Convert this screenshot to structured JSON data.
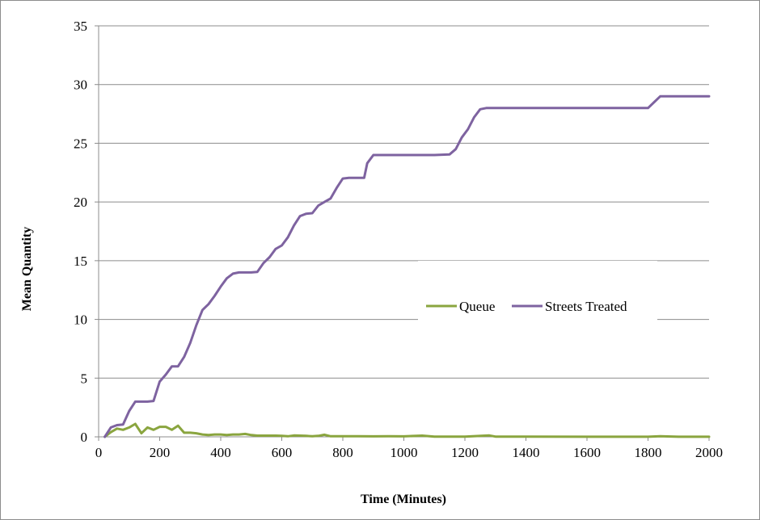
{
  "chart_data": {
    "type": "line",
    "title": "",
    "xlabel": "Time (Minutes)",
    "ylabel": "Mean Quantity",
    "xlim": [
      0,
      2000
    ],
    "ylim": [
      0,
      35
    ],
    "x_ticks": [
      0,
      200,
      400,
      600,
      800,
      1000,
      1200,
      1400,
      1600,
      1800,
      2000
    ],
    "y_ticks": [
      0,
      5,
      10,
      15,
      20,
      25,
      30,
      35
    ],
    "grid": "horizontal",
    "legend_position": "right-middle",
    "series": [
      {
        "name": "Queue",
        "color": "#8aa53f",
        "points": [
          [
            20,
            0
          ],
          [
            40,
            0.4
          ],
          [
            60,
            0.7
          ],
          [
            80,
            0.6
          ],
          [
            100,
            0.8
          ],
          [
            120,
            1.1
          ],
          [
            140,
            0.3
          ],
          [
            160,
            0.8
          ],
          [
            180,
            0.6
          ],
          [
            200,
            0.85
          ],
          [
            220,
            0.85
          ],
          [
            240,
            0.6
          ],
          [
            260,
            0.95
          ],
          [
            280,
            0.35
          ],
          [
            300,
            0.35
          ],
          [
            320,
            0.3
          ],
          [
            340,
            0.2
          ],
          [
            360,
            0.15
          ],
          [
            380,
            0.2
          ],
          [
            400,
            0.2
          ],
          [
            420,
            0.15
          ],
          [
            440,
            0.2
          ],
          [
            460,
            0.2
          ],
          [
            480,
            0.25
          ],
          [
            500,
            0.15
          ],
          [
            520,
            0.1
          ],
          [
            540,
            0.1
          ],
          [
            560,
            0.1
          ],
          [
            580,
            0.1
          ],
          [
            600,
            0.08
          ],
          [
            620,
            0.05
          ],
          [
            640,
            0.12
          ],
          [
            660,
            0.1
          ],
          [
            680,
            0.08
          ],
          [
            700,
            0.05
          ],
          [
            720,
            0.08
          ],
          [
            740,
            0.18
          ],
          [
            760,
            0.05
          ],
          [
            780,
            0.05
          ],
          [
            800,
            0.05
          ],
          [
            850,
            0.05
          ],
          [
            900,
            0.04
          ],
          [
            950,
            0.05
          ],
          [
            1000,
            0.04
          ],
          [
            1060,
            0.1
          ],
          [
            1100,
            0.02
          ],
          [
            1200,
            0.02
          ],
          [
            1280,
            0.12
          ],
          [
            1300,
            0.02
          ],
          [
            1340,
            0.02
          ],
          [
            1400,
            0.02
          ],
          [
            1600,
            0.01
          ],
          [
            1800,
            0.01
          ],
          [
            1840,
            0.05
          ],
          [
            1900,
            0.01
          ],
          [
            2000,
            0.01
          ]
        ]
      },
      {
        "name": "Streets Treated",
        "color": "#7e63a0",
        "points": [
          [
            20,
            0
          ],
          [
            40,
            0.8
          ],
          [
            60,
            1.0
          ],
          [
            80,
            1.05
          ],
          [
            100,
            2.2
          ],
          [
            120,
            3.0
          ],
          [
            140,
            3.0
          ],
          [
            160,
            3.0
          ],
          [
            180,
            3.05
          ],
          [
            200,
            4.7
          ],
          [
            220,
            5.3
          ],
          [
            240,
            6.0
          ],
          [
            260,
            6.0
          ],
          [
            280,
            6.8
          ],
          [
            300,
            8.0
          ],
          [
            320,
            9.5
          ],
          [
            340,
            10.8
          ],
          [
            360,
            11.3
          ],
          [
            380,
            12.0
          ],
          [
            400,
            12.8
          ],
          [
            420,
            13.5
          ],
          [
            440,
            13.9
          ],
          [
            460,
            14.0
          ],
          [
            480,
            14.0
          ],
          [
            500,
            14.0
          ],
          [
            520,
            14.05
          ],
          [
            540,
            14.8
          ],
          [
            560,
            15.3
          ],
          [
            580,
            16.0
          ],
          [
            600,
            16.3
          ],
          [
            620,
            17.0
          ],
          [
            640,
            18.0
          ],
          [
            660,
            18.8
          ],
          [
            680,
            19.0
          ],
          [
            700,
            19.05
          ],
          [
            720,
            19.7
          ],
          [
            740,
            20.0
          ],
          [
            760,
            20.3
          ],
          [
            780,
            21.2
          ],
          [
            800,
            22.0
          ],
          [
            820,
            22.05
          ],
          [
            840,
            22.05
          ],
          [
            870,
            22.05
          ],
          [
            880,
            23.3
          ],
          [
            900,
            24.0
          ],
          [
            920,
            24.0
          ],
          [
            1000,
            24.0
          ],
          [
            1100,
            24.0
          ],
          [
            1150,
            24.05
          ],
          [
            1170,
            24.5
          ],
          [
            1190,
            25.5
          ],
          [
            1210,
            26.2
          ],
          [
            1230,
            27.2
          ],
          [
            1250,
            27.9
          ],
          [
            1270,
            28.0
          ],
          [
            1400,
            28.0
          ],
          [
            1600,
            28.0
          ],
          [
            1800,
            28.0
          ],
          [
            1820,
            28.5
          ],
          [
            1840,
            29.0
          ],
          [
            1900,
            29.0
          ],
          [
            2000,
            29.0
          ]
        ]
      }
    ]
  }
}
